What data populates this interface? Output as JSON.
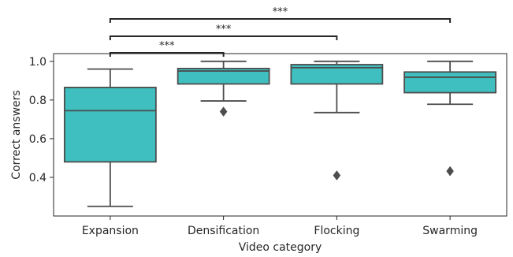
{
  "chart_data": {
    "type": "box",
    "xlabel": "Video category",
    "ylabel": "Correct answers",
    "ylim": [
      0.2,
      1.04
    ],
    "yticks": [
      0.4,
      0.6,
      0.8,
      1.0
    ],
    "ytick_labels": [
      "0.4",
      "0.6",
      "0.8",
      "1.0"
    ],
    "grid": false,
    "colors": {
      "box_fill": "#3fbfbf",
      "line": "#4d4d4d",
      "sig": "#262626"
    },
    "categories": [
      "Expansion",
      "Densification",
      "Flocking",
      "Swarming"
    ],
    "boxes": [
      {
        "category": "Expansion",
        "whisker_low": 0.25,
        "q1": 0.48,
        "median": 0.745,
        "q3": 0.865,
        "whisker_high": 0.96,
        "outliers": []
      },
      {
        "category": "Densification",
        "whisker_low": 0.795,
        "q1": 0.883,
        "median": 0.95,
        "q3": 0.963,
        "whisker_high": 1.0,
        "outliers": [
          0.74
        ]
      },
      {
        "category": "Flocking",
        "whisker_low": 0.735,
        "q1": 0.883,
        "median": 0.967,
        "q3": 0.983,
        "whisker_high": 1.0,
        "outliers": [
          0.41
        ]
      },
      {
        "category": "Swarming",
        "whisker_low": 0.778,
        "q1": 0.838,
        "median": 0.918,
        "q3": 0.945,
        "whisker_high": 1.0,
        "outliers": [
          0.432
        ]
      }
    ],
    "significance": [
      {
        "from": "Expansion",
        "to": "Densification",
        "label": "***"
      },
      {
        "from": "Expansion",
        "to": "Flocking",
        "label": "***"
      },
      {
        "from": "Expansion",
        "to": "Swarming",
        "label": "***"
      }
    ]
  }
}
